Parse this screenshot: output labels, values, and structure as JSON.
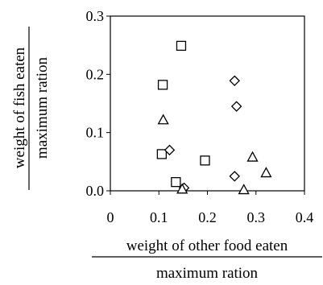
{
  "chart_data": {
    "type": "scatter",
    "x_label": {
      "numerator": "weight of other food eaten",
      "denominator": "maximum ration"
    },
    "y_label": {
      "numerator": "weight of fish eaten",
      "denominator": "maximum ration"
    },
    "xlim": [
      0,
      0.4
    ],
    "ylim": [
      0,
      0.3
    ],
    "x_ticks": [
      "0",
      "0.1",
      "0.2",
      "0.3",
      "0.4"
    ],
    "y_ticks": [
      "0.0",
      "0.1",
      "0.2",
      "0.3"
    ],
    "grid": false,
    "legend": "none",
    "series": [
      {
        "marker": "square",
        "points": [
          [
            0.146,
            0.249
          ],
          [
            0.108,
            0.182
          ],
          [
            0.106,
            0.063
          ],
          [
            0.195,
            0.052
          ],
          [
            0.135,
            0.015
          ]
        ]
      },
      {
        "marker": "diamond",
        "points": [
          [
            0.256,
            0.189
          ],
          [
            0.26,
            0.145
          ],
          [
            0.122,
            0.07
          ],
          [
            0.256,
            0.025
          ],
          [
            0.152,
            0.005
          ]
        ]
      },
      {
        "marker": "triangle",
        "points": [
          [
            0.109,
            0.122
          ],
          [
            0.293,
            0.058
          ],
          [
            0.321,
            0.031
          ],
          [
            0.148,
            0.003
          ],
          [
            0.275,
            0.002
          ]
        ]
      }
    ]
  }
}
